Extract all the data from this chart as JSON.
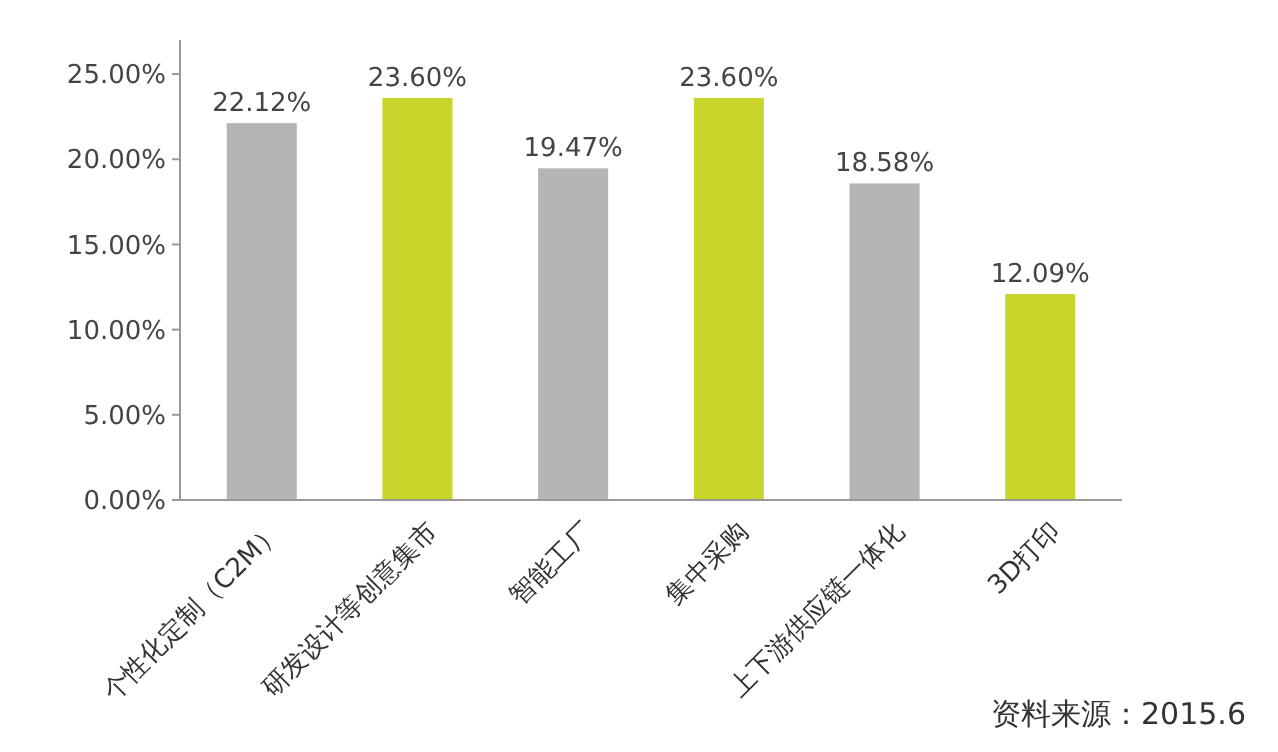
{
  "chart_data": {
    "type": "bar",
    "categories": [
      "个性化定制（C2M）",
      "研发设计等创意集市",
      "智能工厂",
      "集中采购",
      "上下游供应链一体化",
      "3D打印"
    ],
    "values": [
      22.12,
      23.6,
      19.47,
      23.6,
      18.58,
      12.09
    ],
    "colors": [
      "#b5b5b5",
      "#c9d52b",
      "#b5b5b5",
      "#c9d52b",
      "#b5b5b5",
      "#c9d52b"
    ],
    "value_labels": [
      "22.12%",
      "23.60%",
      "19.47%",
      "23.60%",
      "18.58%",
      "12.09%"
    ],
    "ylim": [
      0,
      27
    ],
    "yticks": [
      {
        "value": 0,
        "label": "0.00%"
      },
      {
        "value": 5,
        "label": "5.00%"
      },
      {
        "value": 10,
        "label": "10.00%"
      },
      {
        "value": 15,
        "label": "15.00%"
      },
      {
        "value": 20,
        "label": "20.00%"
      },
      {
        "value": 25,
        "label": "25.00%"
      }
    ],
    "annotations": [
      "资料来源：2015.6"
    ]
  }
}
